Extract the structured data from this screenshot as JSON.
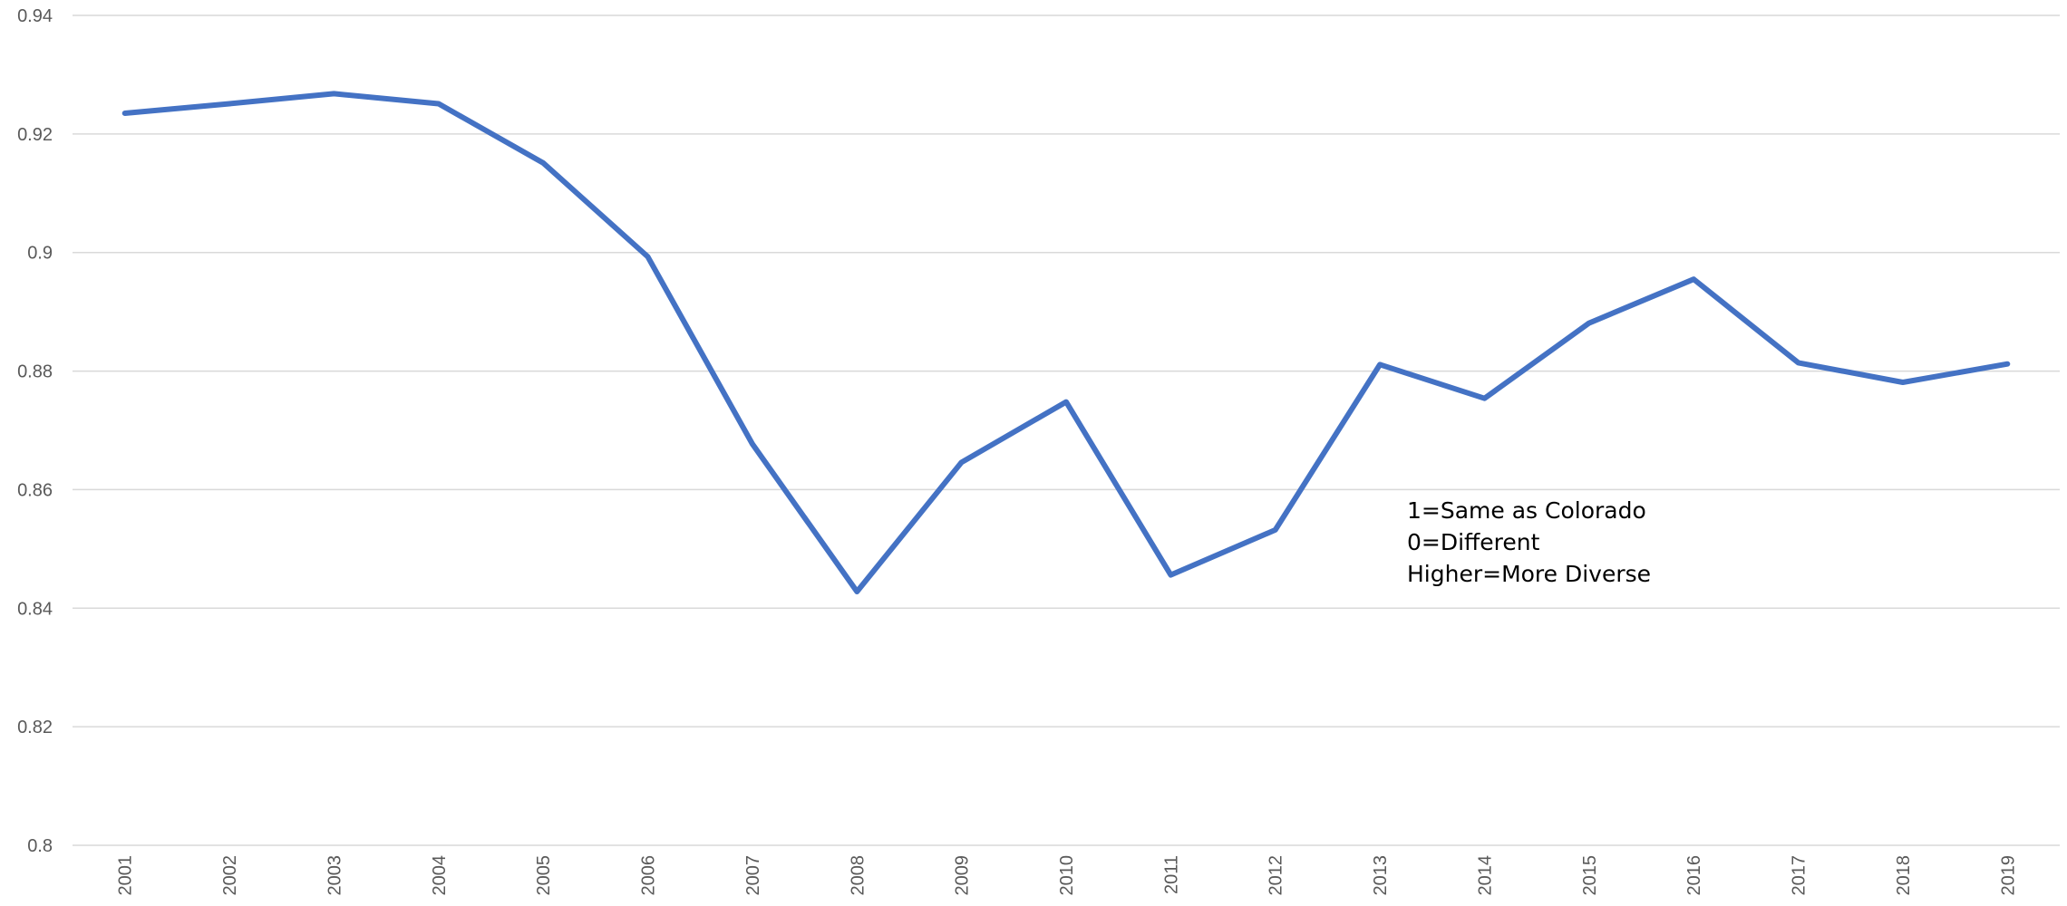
{
  "chart_data": {
    "type": "line",
    "title": "",
    "xlabel": "",
    "ylabel": "",
    "ylim": [
      0.8,
      0.94
    ],
    "yticks": [
      "0.8",
      "0.82",
      "0.84",
      "0.86",
      "0.88",
      "0.9",
      "0.92",
      "0.94"
    ],
    "categories": [
      "2001",
      "2002",
      "2003",
      "2004",
      "2005",
      "2006",
      "2007",
      "2008",
      "2009",
      "2010",
      "2011",
      "2012",
      "2013",
      "2014",
      "2015",
      "2016",
      "2017",
      "2018",
      "2019"
    ],
    "series": [
      {
        "color": "#4472c4",
        "values": [
          0.9235,
          0.9251,
          0.9268,
          0.9251,
          0.9151,
          0.8993,
          0.8677,
          0.8428,
          0.8646,
          0.8748,
          0.8456,
          0.8532,
          0.8811,
          0.8754,
          0.8881,
          0.8955,
          0.8814,
          0.8781,
          0.8812
        ]
      }
    ],
    "grid": true,
    "legend": "none",
    "annotation": {
      "lines": [
        "1=Same as Colorado",
        "0=Different",
        "",
        "Higher=More Diverse"
      ]
    }
  }
}
